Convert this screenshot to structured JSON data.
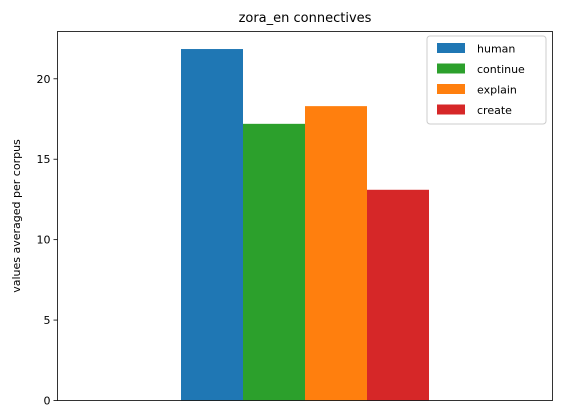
{
  "chart_data": {
    "type": "bar",
    "title": "zora_en connectives",
    "xlabel": "",
    "ylabel": "values averaged per corpus",
    "categories": [
      ""
    ],
    "series": [
      {
        "name": "human",
        "values": [
          21.85
        ],
        "color": "#1f77b4"
      },
      {
        "name": "continue",
        "values": [
          17.2
        ],
        "color": "#2ca02c"
      },
      {
        "name": "explain",
        "values": [
          18.3
        ],
        "color": "#ff7f0e"
      },
      {
        "name": "create",
        "values": [
          13.1
        ],
        "color": "#d62728"
      }
    ],
    "ylim": [
      0,
      22.94
    ],
    "yticks": [
      0,
      5,
      10,
      15,
      20
    ],
    "grid": false,
    "legend": "top-right"
  }
}
